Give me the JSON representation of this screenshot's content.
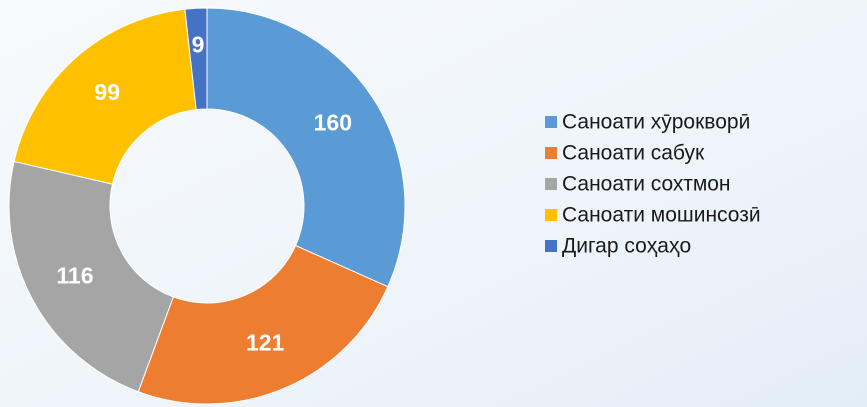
{
  "chart_data": {
    "type": "pie",
    "donut": true,
    "categories": [
      "Саноати хӯрокворӣ",
      "Саноати сабук",
      "Саноати сохтмон",
      "Саноати мошинсозӣ",
      "Дигар соҳаҳо"
    ],
    "values": [
      160,
      121,
      116,
      99,
      9
    ],
    "colors": [
      "#5b9bd5",
      "#ed7d31",
      "#a5a5a5",
      "#ffc000",
      "#4472c4"
    ],
    "legend": "right"
  }
}
